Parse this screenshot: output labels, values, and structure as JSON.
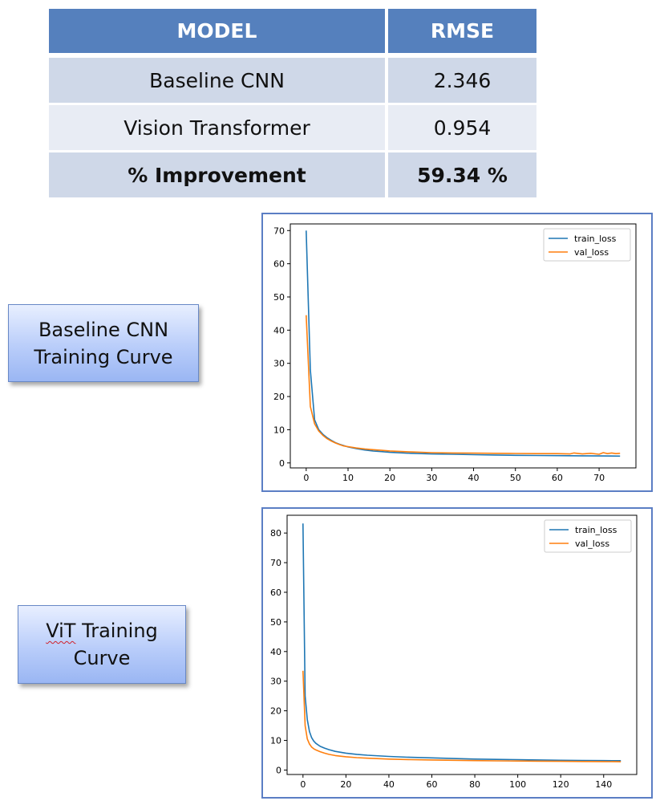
{
  "table": {
    "headers": [
      "MODEL",
      "RMSE"
    ],
    "rows": [
      {
        "model": "Baseline CNN",
        "rmse": "2.346"
      },
      {
        "model": "Vision Transformer",
        "rmse": "0.954"
      },
      {
        "model": "% Improvement",
        "rmse": "59.34 %"
      }
    ]
  },
  "labels": {
    "cnn_line1": "Baseline CNN",
    "cnn_line2": "Training Curve",
    "vit_word1": "ViT",
    "vit_word2": " Training",
    "vit_line2": "Curve"
  },
  "colors": {
    "train_loss": "#1f77b4",
    "val_loss": "#ff7f0e",
    "table_header": "#5580bd",
    "frame_border": "#5b7ec4"
  },
  "chart_data": [
    {
      "type": "line",
      "title": "",
      "xlabel": "",
      "ylabel": "",
      "xlim": [
        -3.8,
        78.8
      ],
      "ylim": [
        -1.5,
        72
      ],
      "xticks": [
        0,
        10,
        20,
        30,
        40,
        50,
        60,
        70
      ],
      "yticks": [
        0,
        10,
        20,
        30,
        40,
        50,
        60,
        70
      ],
      "legend": "top-right",
      "grid": false,
      "series": [
        {
          "name": "train_loss",
          "color": "#1f77b4",
          "x": [
            0,
            1,
            2,
            3,
            4,
            5,
            6,
            7,
            8,
            9,
            10,
            12,
            14,
            16,
            18,
            20,
            25,
            30,
            35,
            40,
            45,
            50,
            55,
            60,
            65,
            70,
            75
          ],
          "y": [
            70,
            28,
            13,
            10,
            8.6,
            7.6,
            6.8,
            6.1,
            5.6,
            5.2,
            4.8,
            4.3,
            3.9,
            3.6,
            3.4,
            3.2,
            2.9,
            2.7,
            2.6,
            2.5,
            2.4,
            2.3,
            2.25,
            2.2,
            2.15,
            2.1,
            2.05
          ]
        },
        {
          "name": "val_loss",
          "color": "#ff7f0e",
          "x": [
            0,
            1,
            2,
            3,
            4,
            5,
            6,
            7,
            8,
            9,
            10,
            12,
            14,
            16,
            18,
            20,
            25,
            30,
            35,
            40,
            45,
            50,
            55,
            60,
            63,
            64,
            66,
            68,
            70,
            71,
            72,
            73,
            74,
            75
          ],
          "y": [
            44.5,
            17,
            11.8,
            9.6,
            8.3,
            7.3,
            6.6,
            6.0,
            5.5,
            5.1,
            4.9,
            4.5,
            4.2,
            4.0,
            3.8,
            3.6,
            3.3,
            3.1,
            3.0,
            2.95,
            2.9,
            2.85,
            2.8,
            2.8,
            2.7,
            3.0,
            2.7,
            2.9,
            2.6,
            3.1,
            2.8,
            3.0,
            2.8,
            2.9
          ]
        }
      ]
    },
    {
      "type": "line",
      "title": "",
      "xlabel": "",
      "ylabel": "",
      "xlim": [
        -7.4,
        155.4
      ],
      "ylim": [
        -1.5,
        86
      ],
      "xticks": [
        0,
        20,
        40,
        60,
        80,
        100,
        120,
        140
      ],
      "yticks": [
        0,
        10,
        20,
        30,
        40,
        50,
        60,
        70,
        80
      ],
      "legend": "top-right",
      "grid": false,
      "series": [
        {
          "name": "train_loss",
          "color": "#1f77b4",
          "x": [
            0,
            1,
            2,
            3,
            4,
            5,
            6,
            8,
            10,
            12,
            15,
            20,
            25,
            30,
            40,
            50,
            60,
            70,
            80,
            90,
            100,
            110,
            120,
            130,
            140,
            148
          ],
          "y": [
            83.2,
            25,
            17,
            13,
            11,
            9.8,
            9,
            8,
            7.4,
            6.9,
            6.3,
            5.7,
            5.3,
            5,
            4.6,
            4.3,
            4.1,
            3.9,
            3.7,
            3.6,
            3.5,
            3.4,
            3.3,
            3.25,
            3.2,
            3.15
          ]
        },
        {
          "name": "val_loss",
          "color": "#ff7f0e",
          "x": [
            0,
            1,
            2,
            3,
            4,
            5,
            6,
            8,
            10,
            12,
            15,
            20,
            25,
            30,
            40,
            50,
            60,
            70,
            80,
            90,
            100,
            110,
            120,
            130,
            140,
            148
          ],
          "y": [
            33.5,
            15,
            10.5,
            8.8,
            7.8,
            7.2,
            6.8,
            6.2,
            5.7,
            5.3,
            4.9,
            4.5,
            4.2,
            4.0,
            3.7,
            3.5,
            3.4,
            3.3,
            3.2,
            3.1,
            3.05,
            3.0,
            2.95,
            2.9,
            2.85,
            2.8
          ]
        }
      ]
    }
  ]
}
